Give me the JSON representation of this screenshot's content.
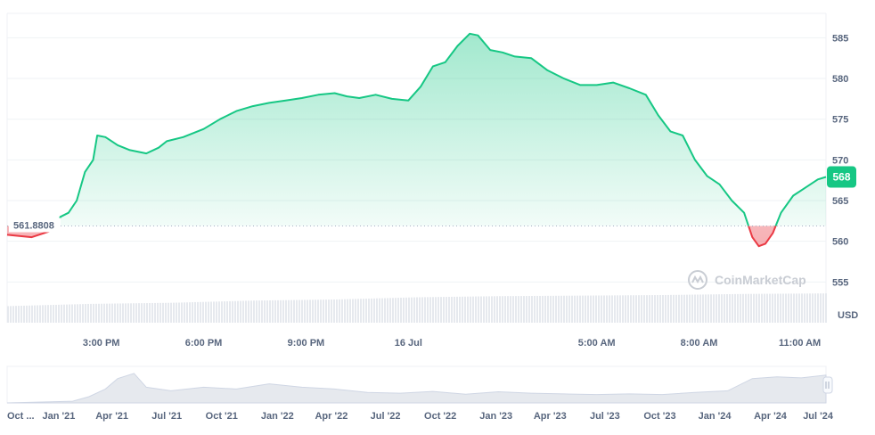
{
  "chart_data": {
    "type": "area",
    "currency_label": "USD",
    "watermark": "CoinMarketCap",
    "baseline": {
      "value": 561.8808,
      "label": "561.8808"
    },
    "current_price": {
      "value": 567.9,
      "label": "568"
    },
    "ylim": [
      550,
      588
    ],
    "y_ticks": [
      {
        "value": 585,
        "label": "585"
      },
      {
        "value": 580,
        "label": "580"
      },
      {
        "value": 575,
        "label": "575"
      },
      {
        "value": 570,
        "label": "570"
      },
      {
        "value": 565,
        "label": "565"
      },
      {
        "value": 560,
        "label": "560"
      },
      {
        "value": 555,
        "label": "555"
      }
    ],
    "x_ticks": [
      {
        "t": 0.115,
        "label": "3:00 PM"
      },
      {
        "t": 0.24,
        "label": "6:00 PM"
      },
      {
        "t": 0.365,
        "label": "9:00 PM"
      },
      {
        "t": 0.49,
        "label": "16 Jul"
      },
      {
        "t": 0.72,
        "label": "5:00 AM"
      },
      {
        "t": 0.845,
        "label": "8:00 AM"
      },
      {
        "t": 0.968,
        "label": "11:00 AM"
      }
    ],
    "price_series": [
      [
        0.0,
        560.8
      ],
      [
        0.03,
        560.5
      ],
      [
        0.06,
        561.5
      ],
      [
        0.065,
        563.0
      ],
      [
        0.075,
        563.5
      ],
      [
        0.085,
        565.0
      ],
      [
        0.095,
        568.5
      ],
      [
        0.105,
        570.0
      ],
      [
        0.11,
        573.0
      ],
      [
        0.12,
        572.8
      ],
      [
        0.135,
        571.8
      ],
      [
        0.15,
        571.2
      ],
      [
        0.17,
        570.8
      ],
      [
        0.185,
        571.5
      ],
      [
        0.195,
        572.3
      ],
      [
        0.215,
        572.8
      ],
      [
        0.24,
        573.8
      ],
      [
        0.26,
        575.0
      ],
      [
        0.28,
        576.0
      ],
      [
        0.3,
        576.6
      ],
      [
        0.32,
        577.0
      ],
      [
        0.34,
        577.3
      ],
      [
        0.36,
        577.6
      ],
      [
        0.38,
        578.0
      ],
      [
        0.4,
        578.2
      ],
      [
        0.415,
        577.8
      ],
      [
        0.43,
        577.6
      ],
      [
        0.45,
        578.0
      ],
      [
        0.47,
        577.5
      ],
      [
        0.49,
        577.3
      ],
      [
        0.505,
        579.0
      ],
      [
        0.52,
        581.5
      ],
      [
        0.535,
        582.0
      ],
      [
        0.55,
        584.0
      ],
      [
        0.565,
        585.5
      ],
      [
        0.575,
        585.3
      ],
      [
        0.59,
        583.5
      ],
      [
        0.605,
        583.2
      ],
      [
        0.62,
        582.7
      ],
      [
        0.64,
        582.5
      ],
      [
        0.66,
        581.0
      ],
      [
        0.68,
        580.0
      ],
      [
        0.7,
        579.2
      ],
      [
        0.72,
        579.2
      ],
      [
        0.74,
        579.5
      ],
      [
        0.76,
        578.8
      ],
      [
        0.78,
        578.0
      ],
      [
        0.795,
        575.5
      ],
      [
        0.81,
        573.5
      ],
      [
        0.825,
        573.0
      ],
      [
        0.84,
        570.0
      ],
      [
        0.855,
        568.0
      ],
      [
        0.87,
        567.0
      ],
      [
        0.885,
        565.0
      ],
      [
        0.9,
        563.5
      ],
      [
        0.91,
        560.5
      ],
      [
        0.918,
        559.4
      ],
      [
        0.926,
        559.7
      ],
      [
        0.935,
        561.0
      ],
      [
        0.945,
        563.5
      ],
      [
        0.96,
        565.6
      ],
      [
        0.975,
        566.6
      ],
      [
        0.99,
        567.6
      ],
      [
        1.0,
        567.9
      ]
    ],
    "volume_series": [
      [
        0.0,
        0.3
      ],
      [
        0.1,
        0.34
      ],
      [
        0.2,
        0.36
      ],
      [
        0.3,
        0.4
      ],
      [
        0.4,
        0.42
      ],
      [
        0.5,
        0.46
      ],
      [
        0.6,
        0.48
      ],
      [
        0.7,
        0.49
      ],
      [
        0.8,
        0.5
      ],
      [
        0.9,
        0.52
      ],
      [
        1.0,
        0.53
      ]
    ],
    "navigator": {
      "x_labels": [
        {
          "t": 0.015,
          "label": "Oct ..."
        },
        {
          "t": 0.063,
          "label": "Jan '21"
        },
        {
          "t": 0.128,
          "label": "Apr '21"
        },
        {
          "t": 0.195,
          "label": "Jul '21"
        },
        {
          "t": 0.262,
          "label": "Oct '21"
        },
        {
          "t": 0.33,
          "label": "Jan '22"
        },
        {
          "t": 0.396,
          "label": "Apr '22"
        },
        {
          "t": 0.462,
          "label": "Jul '22"
        },
        {
          "t": 0.529,
          "label": "Oct '22"
        },
        {
          "t": 0.597,
          "label": "Jan '23"
        },
        {
          "t": 0.663,
          "label": "Apr '23"
        },
        {
          "t": 0.73,
          "label": "Jul '23"
        },
        {
          "t": 0.797,
          "label": "Oct '23"
        },
        {
          "t": 0.864,
          "label": "Jan '24"
        },
        {
          "t": 0.932,
          "label": "Apr '24"
        },
        {
          "t": 0.995,
          "label": "Jul '24"
        }
      ],
      "series": [
        [
          0.0,
          0.0
        ],
        [
          0.08,
          0.05
        ],
        [
          0.1,
          0.18
        ],
        [
          0.12,
          0.4
        ],
        [
          0.135,
          0.7
        ],
        [
          0.155,
          0.85
        ],
        [
          0.17,
          0.45
        ],
        [
          0.2,
          0.35
        ],
        [
          0.24,
          0.45
        ],
        [
          0.28,
          0.4
        ],
        [
          0.32,
          0.55
        ],
        [
          0.36,
          0.45
        ],
        [
          0.4,
          0.4
        ],
        [
          0.44,
          0.3
        ],
        [
          0.48,
          0.28
        ],
        [
          0.52,
          0.33
        ],
        [
          0.56,
          0.25
        ],
        [
          0.6,
          0.32
        ],
        [
          0.64,
          0.28
        ],
        [
          0.68,
          0.26
        ],
        [
          0.72,
          0.24
        ],
        [
          0.76,
          0.26
        ],
        [
          0.8,
          0.24
        ],
        [
          0.84,
          0.3
        ],
        [
          0.88,
          0.35
        ],
        [
          0.91,
          0.7
        ],
        [
          0.94,
          0.75
        ],
        [
          0.97,
          0.72
        ],
        [
          1.0,
          0.8
        ]
      ]
    }
  }
}
